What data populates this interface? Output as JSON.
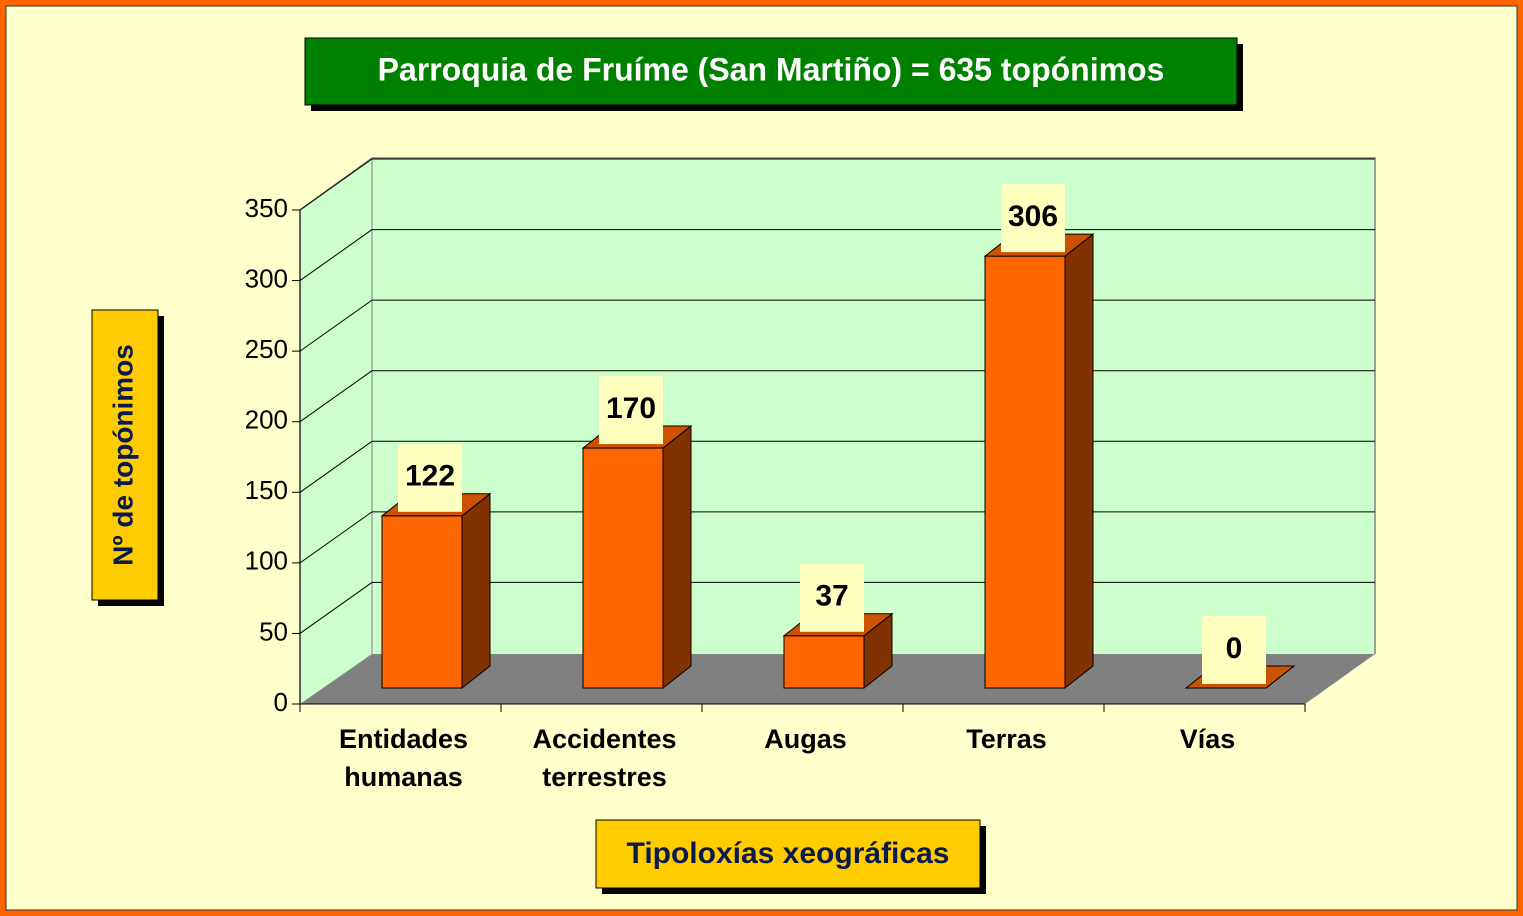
{
  "chart_data": {
    "type": "bar3d",
    "title": "Parroquia de Fruíme (San Martiño) = 635 topónimos",
    "y_label": "Nº de topónimos",
    "x_label": "Tipoloxías xeográficas",
    "categories": [
      "Entidades humanas",
      "Accidentes terrestres",
      "Augas",
      "Terras",
      "Vías"
    ],
    "values": [
      122,
      170,
      37,
      306,
      0
    ],
    "color": "#ff6600",
    "ylim": [
      0,
      350
    ],
    "yticks": [
      0,
      50,
      100,
      150,
      200,
      250,
      300,
      350
    ],
    "grid": true
  }
}
